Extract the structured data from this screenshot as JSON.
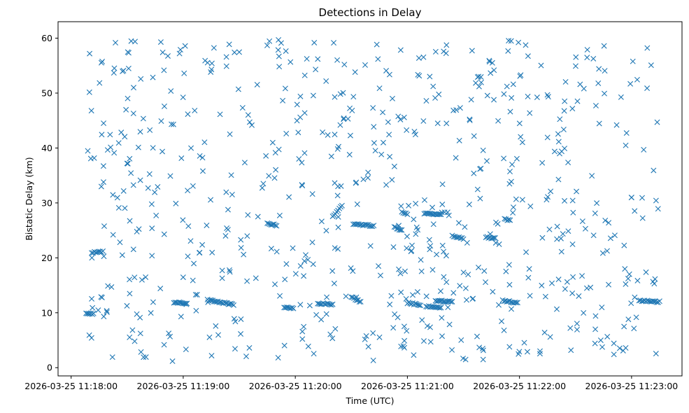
{
  "chart_data": {
    "type": "scatter",
    "title": "Detections in Delay",
    "xlabel": "Time (UTC)",
    "ylabel": "Bistatic Delay (km)",
    "marker": "x",
    "color": "#1f77b4",
    "x_type": "datetime",
    "xlim": [
      "2026-03-25 11:17:53",
      "2026-03-25 11:23:27"
    ],
    "ylim": [
      -1.5,
      63
    ],
    "xticks": [
      "2026-03-25 11:18:00",
      "2026-03-25 11:19:00",
      "2026-03-25 11:20:00",
      "2026-03-25 11:21:00",
      "2026-03-25 11:22:00",
      "2026-03-25 11:23:00"
    ],
    "yticks": [
      0,
      10,
      20,
      30,
      40,
      50,
      60
    ],
    "grid": false,
    "legend": "none",
    "start_time": "2026-03-25 11:18:08",
    "end_time": "2026-03-25 11:23:15",
    "tracks": [
      {
        "start": "2026-03-25 11:18:08",
        "end": "2026-03-25 11:18:12",
        "delay_start": 9.8,
        "delay_end": 9.8
      },
      {
        "start": "2026-03-25 11:18:11",
        "end": "2026-03-25 11:18:17",
        "delay_start": 21.0,
        "delay_end": 21.1
      },
      {
        "start": "2026-03-25 11:18:55",
        "end": "2026-03-25 11:19:02",
        "delay_start": 11.8,
        "delay_end": 11.8
      },
      {
        "start": "2026-03-25 11:19:13",
        "end": "2026-03-25 11:19:27",
        "delay_start": 12.3,
        "delay_end": 11.5
      },
      {
        "start": "2026-03-25 11:19:45",
        "end": "2026-03-25 11:19:50",
        "delay_start": 26.2,
        "delay_end": 25.9
      },
      {
        "start": "2026-03-25 11:19:54",
        "end": "2026-03-25 11:19:59",
        "delay_start": 11.0,
        "delay_end": 10.8
      },
      {
        "start": "2026-03-25 11:20:12",
        "end": "2026-03-25 11:20:20",
        "delay_start": 11.7,
        "delay_end": 11.5
      },
      {
        "start": "2026-03-25 11:20:20",
        "end": "2026-03-25 11:20:25",
        "delay_start": 27.5,
        "delay_end": 29.5
      },
      {
        "start": "2026-03-25 11:20:30",
        "end": "2026-03-25 11:20:35",
        "delay_start": 12.8,
        "delay_end": 12.0
      },
      {
        "start": "2026-03-25 11:20:31",
        "end": "2026-03-25 11:20:42",
        "delay_start": 26.2,
        "delay_end": 25.8
      },
      {
        "start": "2026-03-25 11:20:53",
        "end": "2026-03-25 11:20:57",
        "delay_start": 25.6,
        "delay_end": 25.0
      },
      {
        "start": "2026-03-25 11:20:57",
        "end": "2026-03-25 11:21:00",
        "delay_start": 28.3,
        "delay_end": 28.0
      },
      {
        "start": "2026-03-25 11:21:00",
        "end": "2026-03-25 11:21:07",
        "delay_start": 11.8,
        "delay_end": 11.4
      },
      {
        "start": "2026-03-25 11:21:09",
        "end": "2026-03-25 11:21:18",
        "delay_start": 28.1,
        "delay_end": 27.8
      },
      {
        "start": "2026-03-25 11:21:10",
        "end": "2026-03-25 11:21:18",
        "delay_start": 11.2,
        "delay_end": 10.8
      },
      {
        "start": "2026-03-25 11:21:15",
        "end": "2026-03-25 11:21:24",
        "delay_start": 12.2,
        "delay_end": 12.0
      },
      {
        "start": "2026-03-25 11:21:24",
        "end": "2026-03-25 11:21:30",
        "delay_start": 24.0,
        "delay_end": 23.5
      },
      {
        "start": "2026-03-25 11:21:42",
        "end": "2026-03-25 11:21:47",
        "delay_start": 23.8,
        "delay_end": 23.5
      },
      {
        "start": "2026-03-25 11:21:51",
        "end": "2026-03-25 11:21:59",
        "delay_start": 12.2,
        "delay_end": 11.8
      },
      {
        "start": "2026-03-25 11:21:52",
        "end": "2026-03-25 11:21:55",
        "delay_start": 27.0,
        "delay_end": 26.8
      },
      {
        "start": "2026-03-25 11:23:04",
        "end": "2026-03-25 11:23:15",
        "delay_start": 12.2,
        "delay_end": 12.0
      }
    ],
    "random_detections": {
      "count": 680,
      "time_range": [
        "2026-03-25 11:18:08",
        "2026-03-25 11:23:15"
      ],
      "delay_range": [
        1.0,
        60.0
      ]
    }
  }
}
